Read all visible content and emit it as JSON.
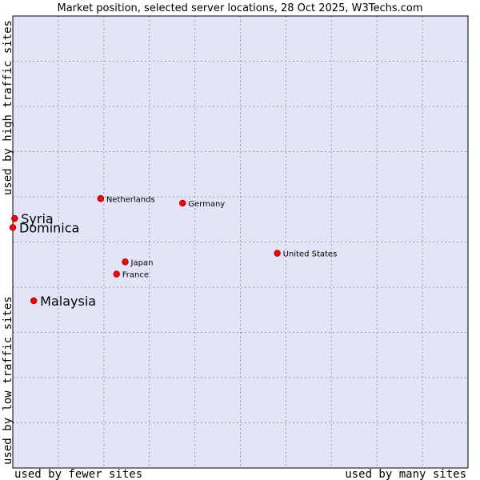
{
  "chart_data": {
    "type": "scatter",
    "title": "Market position, selected server locations, 28 Oct 2025, W3Techs.com",
    "xlabel_low": "used by fewer sites",
    "xlabel_high": "used by many sites",
    "ylabel_low": "used by low traffic sites",
    "ylabel_high": "used by high traffic sites",
    "xlim": [
      0,
      100
    ],
    "ylim": [
      0,
      100
    ],
    "grid": true,
    "colors": {
      "plot_bg": "#e4e4f8",
      "grid": "#9b9bb4",
      "point": "#ff0000",
      "point_edge": "#990000",
      "border": "#000000"
    },
    "points": [
      {
        "label": "Netherlands",
        "x": 19.3,
        "y": 59.6,
        "emphasis": false
      },
      {
        "label": "Germany",
        "x": 37.3,
        "y": 58.6,
        "emphasis": false
      },
      {
        "label": "United States",
        "x": 58.1,
        "y": 47.5,
        "emphasis": false
      },
      {
        "label": "Japan",
        "x": 24.7,
        "y": 45.6,
        "emphasis": false
      },
      {
        "label": "France",
        "x": 22.8,
        "y": 42.9,
        "emphasis": false
      },
      {
        "label": "Syria",
        "x": 0.4,
        "y": 55.2,
        "emphasis": true
      },
      {
        "label": "Dominica",
        "x": 0.0,
        "y": 53.2,
        "emphasis": true
      },
      {
        "label": "Malaysia",
        "x": 4.6,
        "y": 37.0,
        "emphasis": true
      }
    ]
  }
}
